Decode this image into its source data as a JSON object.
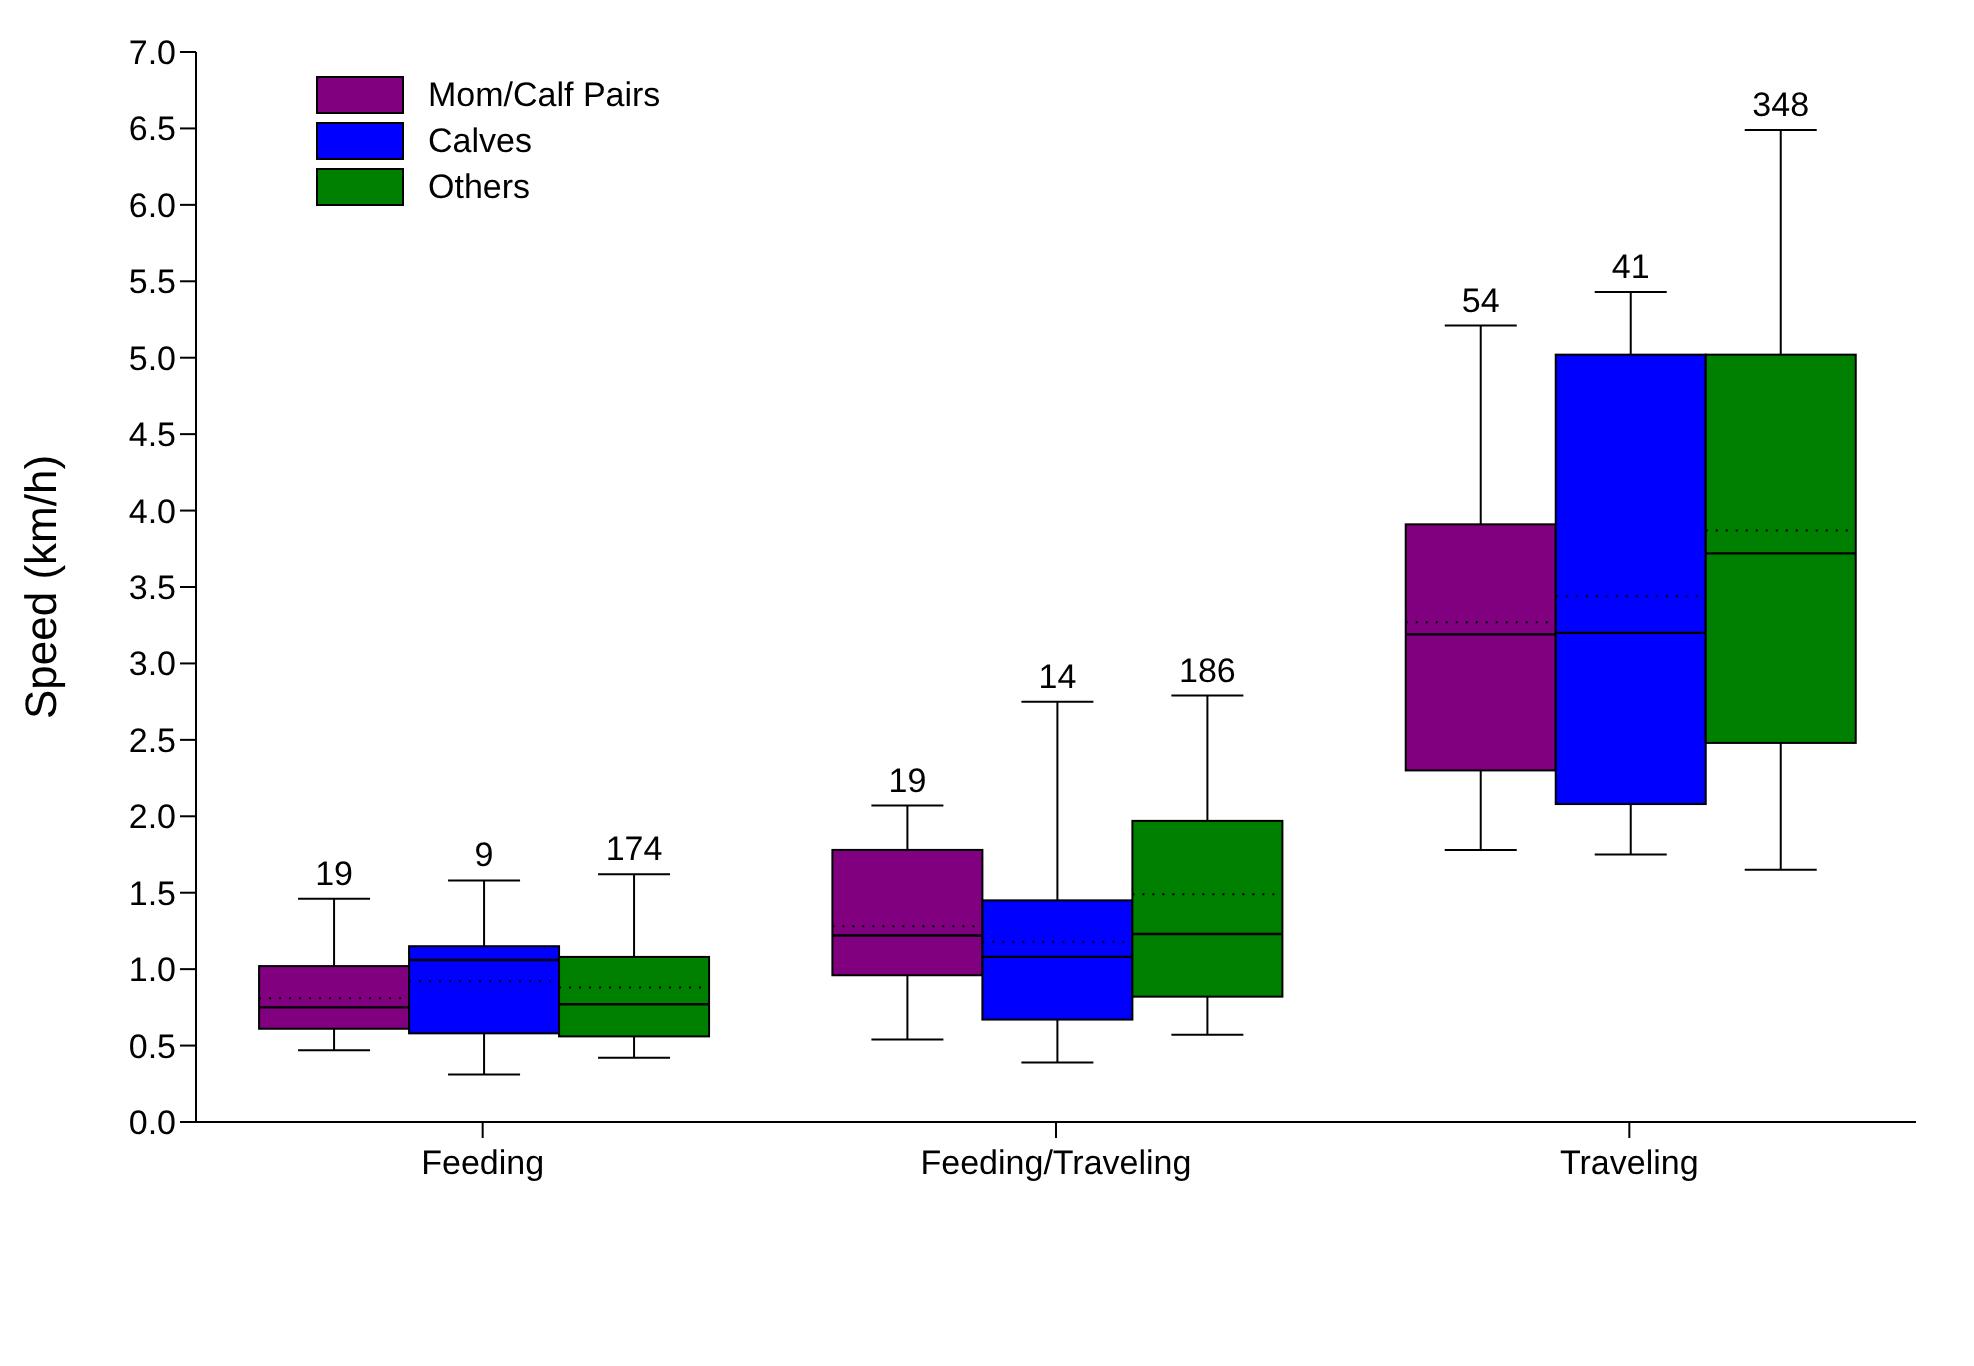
{
  "chart_data": {
    "type": "box",
    "ylabel": "Speed (km/h)",
    "categories": [
      "Feeding",
      "Feeding/Traveling",
      "Traveling"
    ],
    "ylim": [
      0,
      7
    ],
    "yticks": [
      {
        "value": 0,
        "label": "0.0"
      },
      {
        "value": 0.5,
        "label": "0.5"
      },
      {
        "value": 1,
        "label": "1.0"
      },
      {
        "value": 1.5,
        "label": "1.5"
      },
      {
        "value": 2,
        "label": "2.0"
      },
      {
        "value": 2.5,
        "label": "2.5"
      },
      {
        "value": 3,
        "label": "3.0"
      },
      {
        "value": 3.5,
        "label": "3.5"
      },
      {
        "value": 4,
        "label": "4.0"
      },
      {
        "value": 4.5,
        "label": "4.5"
      },
      {
        "value": 5,
        "label": "5.0"
      },
      {
        "value": 5.5,
        "label": "5.5"
      },
      {
        "value": 6,
        "label": "6.0"
      },
      {
        "value": 6.5,
        "label": "6.5"
      },
      {
        "value": 7,
        "label": "7.0"
      }
    ],
    "grid": false,
    "legend": "top left",
    "series": [
      {
        "name": "Mom/Calf Pairs",
        "color": "#800080",
        "value_labels": [
          "19",
          "19",
          "54"
        ],
        "boxes": [
          {
            "low": 0.47,
            "q1": 0.61,
            "median": 0.75,
            "q3": 1.02,
            "high": 1.46,
            "mean": 0.81
          },
          {
            "low": 0.54,
            "q1": 0.96,
            "median": 1.22,
            "q3": 1.78,
            "high": 2.07,
            "mean": 1.28
          },
          {
            "low": 1.78,
            "q1": 2.3,
            "median": 3.19,
            "q3": 3.91,
            "high": 5.21,
            "mean": 3.27
          }
        ]
      },
      {
        "name": "Calves",
        "color": "#0000ff",
        "value_labels": [
          "9",
          "14",
          "41"
        ],
        "boxes": [
          {
            "low": 0.31,
            "q1": 0.58,
            "median": 1.06,
            "q3": 1.15,
            "high": 1.58,
            "mean": 0.92
          },
          {
            "low": 0.39,
            "q1": 0.67,
            "median": 1.08,
            "q3": 1.45,
            "high": 2.75,
            "mean": 1.18
          },
          {
            "low": 1.75,
            "q1": 2.08,
            "median": 3.2,
            "q3": 5.02,
            "high": 5.43,
            "mean": 3.44
          }
        ]
      },
      {
        "name": "Others",
        "color": "#008000",
        "value_labels": [
          "174",
          "186",
          "348"
        ],
        "boxes": [
          {
            "low": 0.42,
            "q1": 0.56,
            "median": 0.77,
            "q3": 1.08,
            "high": 1.62,
            "mean": 0.88
          },
          {
            "low": 0.57,
            "q1": 0.82,
            "median": 1.23,
            "q3": 1.97,
            "high": 2.79,
            "mean": 1.49
          },
          {
            "low": 1.65,
            "q1": 2.48,
            "median": 3.72,
            "q3": 5.02,
            "high": 6.49,
            "mean": 3.87
          }
        ]
      }
    ]
  }
}
